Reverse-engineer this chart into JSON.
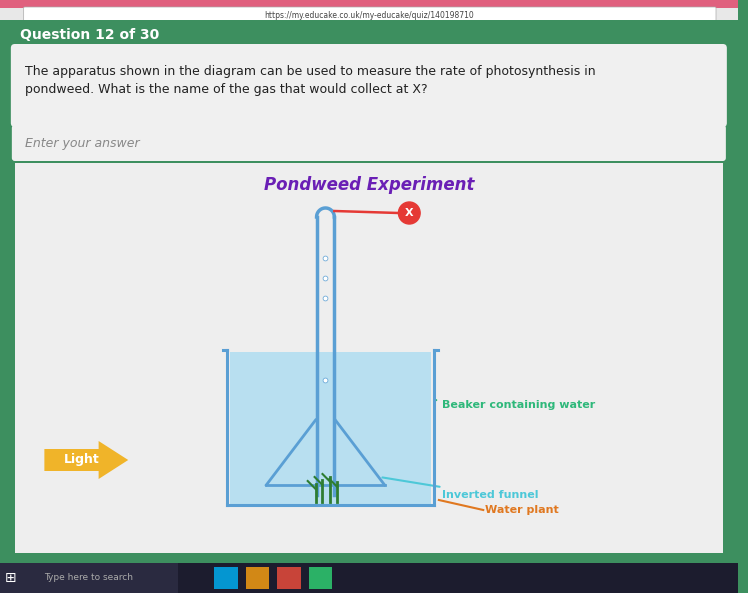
{
  "bg_color": "#3d8f5f",
  "browser_top_color": "#e8e8e8",
  "browser_tab_color": "#f2f2f2",
  "url_text": "https://my.educake.co.uk/my-educake/quiz/140198710",
  "question_header": "Question 12 of 30",
  "question_header_color": "#ffffff",
  "question_bg": "#f0f0f0",
  "question_text_line1": "The apparatus shown in the diagram can be used to measure the rate of photosynthesis in",
  "question_text_line2": "pondweed. What is the name of the gas that would collect at X?",
  "answer_box_text": "Enter your answer",
  "diagram_bg": "#eeeeee",
  "diagram_title": "Pondweed Experiment",
  "diagram_title_color": "#6a1fb5",
  "label_beaker": "Beaker containing water",
  "label_funnel": "Inverted funnel",
  "label_plant": "Water plant",
  "label_light": "Light",
  "label_x": "X",
  "beaker_water_color": "#b8dff0",
  "beaker_outline_color": "#5a9fd4",
  "tube_color": "#5a9fd4",
  "funnel_color": "#5a9fd4",
  "light_color": "#f0b429",
  "x_circle_color": "#e53935",
  "x_text_color": "#ffffff",
  "x_line_color": "#e53935",
  "ann_line_color_beaker": "#2eb87a",
  "ann_label_color_beaker": "#2eb87a",
  "ann_line_color_funnel": "#4dc8d8",
  "ann_label_color_funnel": "#4dc8d8",
  "ann_label_color_plant": "#e07820",
  "ann_line_color_plant": "#e07820",
  "taskbar_color": "#1c1c2e",
  "search_text": "Type here to search",
  "pink_bar_color": "#e0607e"
}
